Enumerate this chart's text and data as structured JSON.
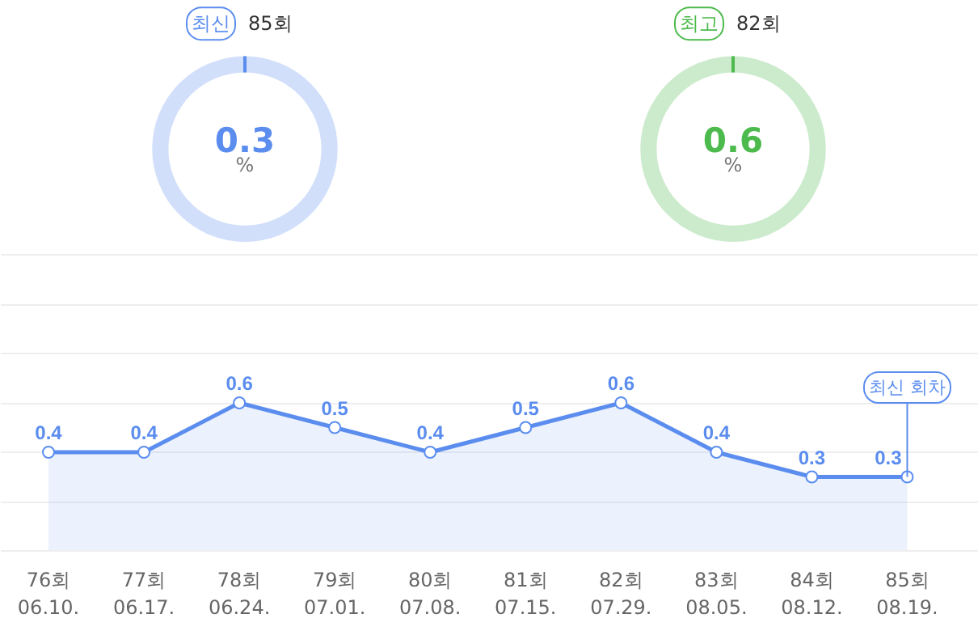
{
  "chart_data": [
    {
      "type": "other",
      "title": "최신",
      "subtitle": "85회",
      "values": [
        0.3
      ],
      "data_labels": true,
      "annotations": [
        "%"
      ],
      "color": "#5b8def",
      "colors": [
        "#d1dffa"
      ]
    },
    {
      "type": "other",
      "title": "최고",
      "subtitle": "82회",
      "values": [
        0.6
      ],
      "data_labels": true,
      "annotations": [
        "%"
      ],
      "color": "#4cba4c",
      "colors": [
        "#ccebcc"
      ]
    },
    {
      "type": "area",
      "categories": [
        "76회\n06.10.",
        "77회\n06.17.",
        "78회\n06.24.",
        "79회\n07.01.",
        "80회\n07.08.",
        "81회\n07.15.",
        "82회\n07.29.",
        "83회\n08.05.",
        "84회\n08.12.",
        "85회\n08.19."
      ],
      "series": [
        {
          "color": "#5b8def",
          "values": [
            0.4,
            0.4,
            0.6,
            0.5,
            0.4,
            0.5,
            0.6,
            0.4,
            0.3,
            0.3
          ]
        }
      ],
      "data_labels": true,
      "marker": "circle",
      "line_style": "solid",
      "grid": "y",
      "ylim": [
        0,
        1.2
      ],
      "yticks": [
        {
          "value": 0,
          "label": null
        },
        {
          "value": 0.2,
          "label": null
        },
        {
          "value": 0.4,
          "label": null
        },
        {
          "value": 0.6,
          "label": null
        },
        {
          "value": 0.8,
          "label": null
        },
        {
          "value": 1.0,
          "label": null
        },
        {
          "value": 1.2,
          "label": null
        }
      ],
      "annotations": [
        {
          "text": "최신 회차",
          "x": "85회\n08.19.",
          "y": 0.3
        }
      ]
    }
  ]
}
